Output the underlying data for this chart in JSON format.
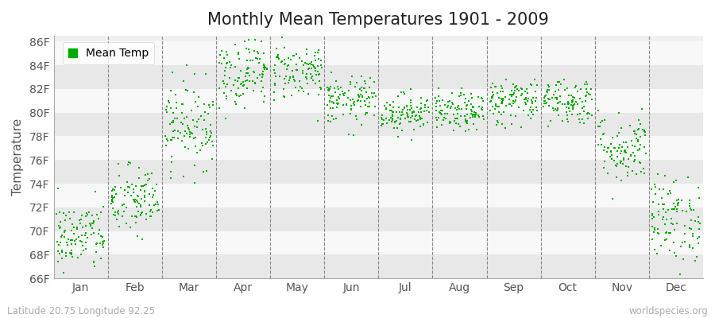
{
  "title": "Monthly Mean Temperatures 1901 - 2009",
  "ylabel": "Temperature",
  "ytick_labels": [
    "66F",
    "68F",
    "70F",
    "72F",
    "74F",
    "76F",
    "78F",
    "80F",
    "82F",
    "84F",
    "86F"
  ],
  "ytick_values": [
    66,
    68,
    70,
    72,
    74,
    76,
    78,
    80,
    82,
    84,
    86
  ],
  "ylim": [
    66,
    86.5
  ],
  "months": [
    "Jan",
    "Feb",
    "Mar",
    "Apr",
    "May",
    "Jun",
    "Jul",
    "Aug",
    "Sep",
    "Oct",
    "Nov",
    "Dec"
  ],
  "month_positions": [
    0.5,
    1.5,
    2.5,
    3.5,
    4.5,
    5.5,
    6.5,
    7.5,
    8.5,
    9.5,
    10.5,
    11.5
  ],
  "dot_color": "#00AA00",
  "background_color": "#ffffff",
  "plot_bg_color": "#f0f0f0",
  "band_color_1": "#e8e8e8",
  "band_color_2": "#f8f8f8",
  "title_fontsize": 15,
  "axis_fontsize": 11,
  "tick_fontsize": 10,
  "legend_label": "Mean Temp",
  "footnote_left": "Latitude 20.75 Longitude 92.25",
  "footnote_right": "worldspecies.org",
  "seed": 42,
  "n_years": 109,
  "monthly_means": [
    69.5,
    72.5,
    79.0,
    83.5,
    83.5,
    81.0,
    80.0,
    80.0,
    81.0,
    81.0,
    77.0,
    71.0
  ],
  "monthly_stds": [
    1.5,
    1.5,
    1.8,
    1.5,
    1.2,
    1.0,
    0.8,
    0.8,
    1.0,
    1.0,
    1.5,
    1.8
  ]
}
